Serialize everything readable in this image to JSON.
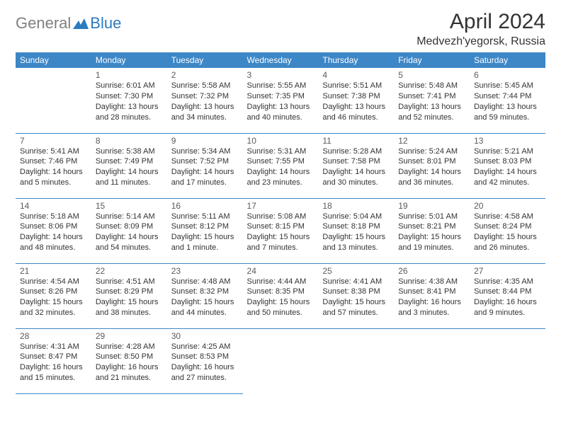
{
  "logo": {
    "gray": "General",
    "blue": "Blue"
  },
  "title": "April 2024",
  "location": "Medvezh'yegorsk, Russia",
  "colors": {
    "header_bg": "#3d87c7",
    "header_text": "#ffffff",
    "border": "#3d87c7",
    "logo_gray": "#808080",
    "logo_blue": "#2b7bbf",
    "text": "#333333"
  },
  "days_of_week": [
    "Sunday",
    "Monday",
    "Tuesday",
    "Wednesday",
    "Thursday",
    "Friday",
    "Saturday"
  ],
  "weeks": [
    [
      null,
      {
        "n": "1",
        "sr": "Sunrise: 6:01 AM",
        "ss": "Sunset: 7:30 PM",
        "dl1": "Daylight: 13 hours",
        "dl2": "and 28 minutes."
      },
      {
        "n": "2",
        "sr": "Sunrise: 5:58 AM",
        "ss": "Sunset: 7:32 PM",
        "dl1": "Daylight: 13 hours",
        "dl2": "and 34 minutes."
      },
      {
        "n": "3",
        "sr": "Sunrise: 5:55 AM",
        "ss": "Sunset: 7:35 PM",
        "dl1": "Daylight: 13 hours",
        "dl2": "and 40 minutes."
      },
      {
        "n": "4",
        "sr": "Sunrise: 5:51 AM",
        "ss": "Sunset: 7:38 PM",
        "dl1": "Daylight: 13 hours",
        "dl2": "and 46 minutes."
      },
      {
        "n": "5",
        "sr": "Sunrise: 5:48 AM",
        "ss": "Sunset: 7:41 PM",
        "dl1": "Daylight: 13 hours",
        "dl2": "and 52 minutes."
      },
      {
        "n": "6",
        "sr": "Sunrise: 5:45 AM",
        "ss": "Sunset: 7:44 PM",
        "dl1": "Daylight: 13 hours",
        "dl2": "and 59 minutes."
      }
    ],
    [
      {
        "n": "7",
        "sr": "Sunrise: 5:41 AM",
        "ss": "Sunset: 7:46 PM",
        "dl1": "Daylight: 14 hours",
        "dl2": "and 5 minutes."
      },
      {
        "n": "8",
        "sr": "Sunrise: 5:38 AM",
        "ss": "Sunset: 7:49 PM",
        "dl1": "Daylight: 14 hours",
        "dl2": "and 11 minutes."
      },
      {
        "n": "9",
        "sr": "Sunrise: 5:34 AM",
        "ss": "Sunset: 7:52 PM",
        "dl1": "Daylight: 14 hours",
        "dl2": "and 17 minutes."
      },
      {
        "n": "10",
        "sr": "Sunrise: 5:31 AM",
        "ss": "Sunset: 7:55 PM",
        "dl1": "Daylight: 14 hours",
        "dl2": "and 23 minutes."
      },
      {
        "n": "11",
        "sr": "Sunrise: 5:28 AM",
        "ss": "Sunset: 7:58 PM",
        "dl1": "Daylight: 14 hours",
        "dl2": "and 30 minutes."
      },
      {
        "n": "12",
        "sr": "Sunrise: 5:24 AM",
        "ss": "Sunset: 8:01 PM",
        "dl1": "Daylight: 14 hours",
        "dl2": "and 36 minutes."
      },
      {
        "n": "13",
        "sr": "Sunrise: 5:21 AM",
        "ss": "Sunset: 8:03 PM",
        "dl1": "Daylight: 14 hours",
        "dl2": "and 42 minutes."
      }
    ],
    [
      {
        "n": "14",
        "sr": "Sunrise: 5:18 AM",
        "ss": "Sunset: 8:06 PM",
        "dl1": "Daylight: 14 hours",
        "dl2": "and 48 minutes."
      },
      {
        "n": "15",
        "sr": "Sunrise: 5:14 AM",
        "ss": "Sunset: 8:09 PM",
        "dl1": "Daylight: 14 hours",
        "dl2": "and 54 minutes."
      },
      {
        "n": "16",
        "sr": "Sunrise: 5:11 AM",
        "ss": "Sunset: 8:12 PM",
        "dl1": "Daylight: 15 hours",
        "dl2": "and 1 minute."
      },
      {
        "n": "17",
        "sr": "Sunrise: 5:08 AM",
        "ss": "Sunset: 8:15 PM",
        "dl1": "Daylight: 15 hours",
        "dl2": "and 7 minutes."
      },
      {
        "n": "18",
        "sr": "Sunrise: 5:04 AM",
        "ss": "Sunset: 8:18 PM",
        "dl1": "Daylight: 15 hours",
        "dl2": "and 13 minutes."
      },
      {
        "n": "19",
        "sr": "Sunrise: 5:01 AM",
        "ss": "Sunset: 8:21 PM",
        "dl1": "Daylight: 15 hours",
        "dl2": "and 19 minutes."
      },
      {
        "n": "20",
        "sr": "Sunrise: 4:58 AM",
        "ss": "Sunset: 8:24 PM",
        "dl1": "Daylight: 15 hours",
        "dl2": "and 26 minutes."
      }
    ],
    [
      {
        "n": "21",
        "sr": "Sunrise: 4:54 AM",
        "ss": "Sunset: 8:26 PM",
        "dl1": "Daylight: 15 hours",
        "dl2": "and 32 minutes."
      },
      {
        "n": "22",
        "sr": "Sunrise: 4:51 AM",
        "ss": "Sunset: 8:29 PM",
        "dl1": "Daylight: 15 hours",
        "dl2": "and 38 minutes."
      },
      {
        "n": "23",
        "sr": "Sunrise: 4:48 AM",
        "ss": "Sunset: 8:32 PM",
        "dl1": "Daylight: 15 hours",
        "dl2": "and 44 minutes."
      },
      {
        "n": "24",
        "sr": "Sunrise: 4:44 AM",
        "ss": "Sunset: 8:35 PM",
        "dl1": "Daylight: 15 hours",
        "dl2": "and 50 minutes."
      },
      {
        "n": "25",
        "sr": "Sunrise: 4:41 AM",
        "ss": "Sunset: 8:38 PM",
        "dl1": "Daylight: 15 hours",
        "dl2": "and 57 minutes."
      },
      {
        "n": "26",
        "sr": "Sunrise: 4:38 AM",
        "ss": "Sunset: 8:41 PM",
        "dl1": "Daylight: 16 hours",
        "dl2": "and 3 minutes."
      },
      {
        "n": "27",
        "sr": "Sunrise: 4:35 AM",
        "ss": "Sunset: 8:44 PM",
        "dl1": "Daylight: 16 hours",
        "dl2": "and 9 minutes."
      }
    ],
    [
      {
        "n": "28",
        "sr": "Sunrise: 4:31 AM",
        "ss": "Sunset: 8:47 PM",
        "dl1": "Daylight: 16 hours",
        "dl2": "and 15 minutes."
      },
      {
        "n": "29",
        "sr": "Sunrise: 4:28 AM",
        "ss": "Sunset: 8:50 PM",
        "dl1": "Daylight: 16 hours",
        "dl2": "and 21 minutes."
      },
      {
        "n": "30",
        "sr": "Sunrise: 4:25 AM",
        "ss": "Sunset: 8:53 PM",
        "dl1": "Daylight: 16 hours",
        "dl2": "and 27 minutes."
      },
      null,
      null,
      null,
      null
    ]
  ]
}
